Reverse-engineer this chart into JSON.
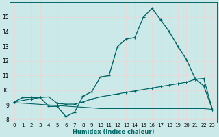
{
  "xlabel": "Humidex (Indice chaleur)",
  "bg_color": "#cce9e9",
  "grid_color": "#e8d8d8",
  "line_color": "#006666",
  "xlim": [
    -0.5,
    23.5
  ],
  "ylim": [
    7.8,
    16.0
  ],
  "xticks": [
    0,
    1,
    2,
    3,
    4,
    5,
    6,
    7,
    8,
    9,
    10,
    11,
    12,
    13,
    14,
    15,
    16,
    17,
    18,
    19,
    20,
    21,
    22,
    23
  ],
  "yticks": [
    8,
    9,
    10,
    11,
    12,
    13,
    14,
    15
  ],
  "line1_x": [
    0,
    1,
    2,
    3,
    4,
    5,
    6,
    7,
    8,
    9,
    10,
    11,
    12,
    13,
    14,
    15,
    16,
    17,
    18,
    19,
    20,
    21,
    22,
    23
  ],
  "line1_y": [
    9.2,
    9.5,
    9.5,
    9.5,
    8.9,
    8.9,
    8.2,
    8.5,
    9.6,
    9.9,
    10.9,
    11.0,
    13.0,
    13.5,
    13.6,
    15.0,
    15.6,
    14.8,
    14.0,
    13.0,
    12.1,
    10.8,
    10.3,
    8.7
  ],
  "line2_x": [
    0,
    1,
    2,
    3,
    4,
    5,
    6,
    7,
    8,
    9,
    10,
    11,
    12,
    13,
    14,
    15,
    16,
    17,
    18,
    19,
    20,
    21,
    22,
    23
  ],
  "line2_y": [
    9.2,
    9.3,
    9.4,
    9.5,
    9.55,
    9.1,
    9.05,
    9.05,
    9.2,
    9.4,
    9.55,
    9.65,
    9.75,
    9.85,
    9.95,
    10.05,
    10.15,
    10.25,
    10.35,
    10.45,
    10.55,
    10.75,
    10.8,
    8.7
  ],
  "line3_x": [
    0,
    9,
    10,
    11,
    12,
    13,
    14,
    15,
    16,
    17,
    18,
    19,
    20,
    21,
    22,
    23
  ],
  "line3_y": [
    9.15,
    8.8,
    8.75,
    8.75,
    8.75,
    8.75,
    8.75,
    8.75,
    8.75,
    8.75,
    8.75,
    8.75,
    8.75,
    8.75,
    8.75,
    8.7
  ]
}
